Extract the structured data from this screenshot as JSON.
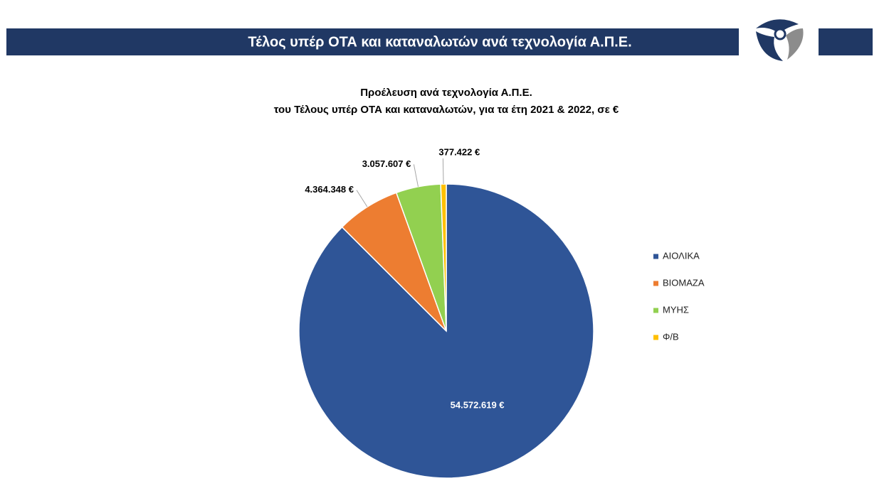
{
  "header": {
    "title": "Τέλος υπέρ ΟΤΑ και καταναλωτών ανά τεχνολογία Α.Π.Ε."
  },
  "chart_data": {
    "type": "pie",
    "title": "Προέλευση ανά τεχνολογία Α.Π.Ε.",
    "subtitle": "του Τέλους υπέρ ΟΤΑ και καταναλωτών, για τα έτη 2021 & 2022, σε €",
    "categories": [
      "ΑΙΟΛΙΚΑ",
      "ΒΙΟΜΑΖΑ",
      "ΜΥΗΣ",
      "Φ/Β"
    ],
    "values": [
      54572619,
      4364348,
      3057607,
      377422
    ],
    "value_labels": [
      "54.572.619 €",
      "4.364.348 €",
      "3.057.607 €",
      "377.422 €"
    ],
    "colors": [
      "#2f5597",
      "#ed7d31",
      "#92d050",
      "#ffc000"
    ],
    "legend": "right"
  }
}
